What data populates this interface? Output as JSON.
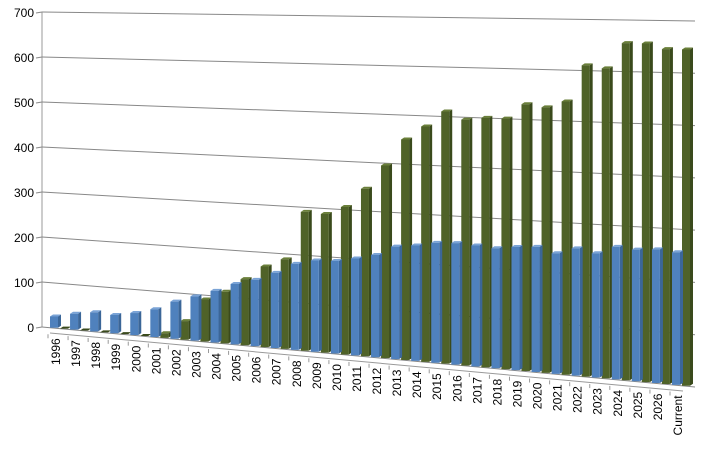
{
  "chart_data": {
    "type": "bar",
    "style": "3d-perspective-clustered-column",
    "title": "",
    "xlabel": "",
    "ylabel": "",
    "ylim": [
      0,
      700
    ],
    "yticks": [
      0,
      100,
      200,
      300,
      400,
      500,
      600,
      700
    ],
    "grid": true,
    "legend": "none",
    "categories": [
      "1996",
      "1997",
      "1998",
      "1999",
      "2000",
      "2001",
      "2002",
      "2003",
      "2004",
      "2005",
      "2006",
      "2007",
      "2008",
      "2009",
      "2010",
      "2011",
      "2012",
      "2013",
      "2014",
      "2015",
      "2016",
      "2017",
      "2018",
      "2019",
      "2020",
      "2021",
      "2022",
      "2023",
      "2024",
      "2025",
      "2026",
      "Current"
    ],
    "series": [
      {
        "color": "#4f81bd",
        "values": [
          25,
          35,
          42,
          40,
          48,
          60,
          80,
          95,
          110,
          128,
          140,
          158,
          180,
          190,
          192,
          200,
          210,
          230,
          235,
          243,
          245,
          243,
          240,
          245,
          248,
          238,
          250,
          243,
          258,
          255,
          258,
          255
        ]
      },
      {
        "color": "#4f6228",
        "values": [
          0,
          0,
          0,
          0,
          0,
          10,
          40,
          90,
          110,
          140,
          170,
          188,
          290,
          288,
          305,
          345,
          395,
          450,
          478,
          510,
          495,
          500,
          500,
          530,
          525,
          538,
          610,
          605,
          655,
          655,
          645,
          645
        ]
      }
    ]
  }
}
